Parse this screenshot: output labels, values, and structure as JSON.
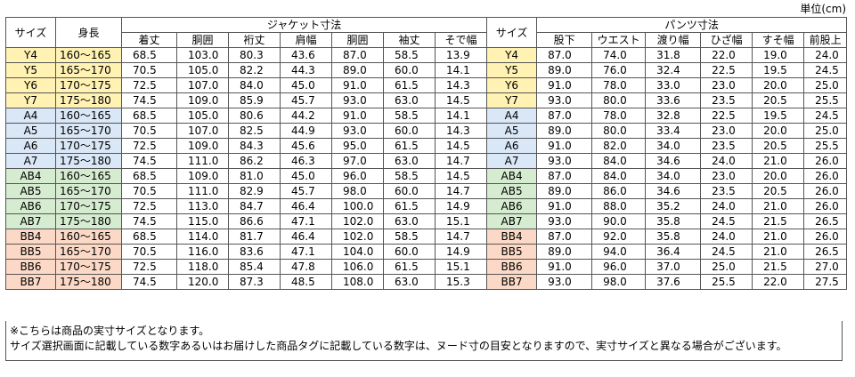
{
  "unit_label": "単位(cm)",
  "headers": {
    "size": "サイズ",
    "height": "身長",
    "jacket_group": "ジャケット寸法",
    "pants_group": "パンツ寸法",
    "jacket_cols": [
      "着丈",
      "胴囲",
      "裄丈",
      "肩幅",
      "胴囲",
      "袖丈",
      "そで幅"
    ],
    "pants_cols": [
      "股下",
      "ウエスト",
      "渡り幅",
      "ひざ幅",
      "すそ幅",
      "前股上"
    ]
  },
  "row_colors": {
    "Y": "#fff2b3",
    "A": "#d9e7f7",
    "AB": "#d6ecd0",
    "BB": "#fbd9c6"
  },
  "rows": [
    {
      "group": "Y",
      "size": "Y4",
      "height": "160～165",
      "jacket": [
        "68.5",
        "103.0",
        "80.3",
        "43.6",
        "87.0",
        "58.5",
        "13.9"
      ],
      "psize": "Y4",
      "pants": [
        "87.0",
        "74.0",
        "31.8",
        "22.0",
        "19.0",
        "24.0"
      ]
    },
    {
      "group": "Y",
      "size": "Y5",
      "height": "165～170",
      "jacket": [
        "70.5",
        "105.0",
        "82.2",
        "44.3",
        "89.0",
        "60.0",
        "14.1"
      ],
      "psize": "Y5",
      "pants": [
        "89.0",
        "76.0",
        "32.4",
        "22.5",
        "19.5",
        "24.5"
      ]
    },
    {
      "group": "Y",
      "size": "Y6",
      "height": "170～175",
      "jacket": [
        "72.5",
        "107.0",
        "84.0",
        "45.0",
        "91.0",
        "61.5",
        "14.3"
      ],
      "psize": "Y6",
      "pants": [
        "91.0",
        "78.0",
        "33.0",
        "23.0",
        "20.0",
        "25.0"
      ]
    },
    {
      "group": "Y",
      "size": "Y7",
      "height": "175～180",
      "jacket": [
        "74.5",
        "109.0",
        "85.9",
        "45.7",
        "93.0",
        "63.0",
        "14.5"
      ],
      "psize": "Y7",
      "pants": [
        "93.0",
        "80.0",
        "33.6",
        "23.5",
        "20.5",
        "25.5"
      ]
    },
    {
      "group": "A",
      "size": "A4",
      "height": "160～165",
      "jacket": [
        "68.5",
        "105.0",
        "80.6",
        "44.2",
        "91.0",
        "58.5",
        "14.1"
      ],
      "psize": "A4",
      "pants": [
        "87.0",
        "78.0",
        "32.8",
        "22.5",
        "19.5",
        "24.5"
      ]
    },
    {
      "group": "A",
      "size": "A5",
      "height": "165～170",
      "jacket": [
        "70.5",
        "107.0",
        "82.5",
        "44.9",
        "93.0",
        "60.0",
        "14.3"
      ],
      "psize": "A5",
      "pants": [
        "89.0",
        "80.0",
        "33.4",
        "23.0",
        "20.0",
        "25.0"
      ]
    },
    {
      "group": "A",
      "size": "A6",
      "height": "170～175",
      "jacket": [
        "72.5",
        "109.0",
        "84.3",
        "45.6",
        "95.0",
        "61.5",
        "14.5"
      ],
      "psize": "A6",
      "pants": [
        "91.0",
        "82.0",
        "34.0",
        "23.5",
        "20.5",
        "25.5"
      ]
    },
    {
      "group": "A",
      "size": "A7",
      "height": "175～180",
      "jacket": [
        "74.5",
        "111.0",
        "86.2",
        "46.3",
        "97.0",
        "63.0",
        "14.7"
      ],
      "psize": "A7",
      "pants": [
        "93.0",
        "84.0",
        "34.6",
        "24.0",
        "21.0",
        "26.0"
      ]
    },
    {
      "group": "AB",
      "size": "AB4",
      "height": "160～165",
      "jacket": [
        "68.5",
        "109.0",
        "81.0",
        "45.0",
        "96.0",
        "58.5",
        "14.5"
      ],
      "psize": "AB4",
      "pants": [
        "87.0",
        "84.0",
        "34.0",
        "23.0",
        "20.0",
        "26.0"
      ]
    },
    {
      "group": "AB",
      "size": "AB5",
      "height": "165～170",
      "jacket": [
        "70.5",
        "111.0",
        "82.9",
        "45.7",
        "98.0",
        "60.0",
        "14.7"
      ],
      "psize": "AB5",
      "pants": [
        "89.0",
        "86.0",
        "34.6",
        "23.5",
        "20.5",
        "26.0"
      ]
    },
    {
      "group": "AB",
      "size": "AB6",
      "height": "170～175",
      "jacket": [
        "72.5",
        "113.0",
        "84.7",
        "46.4",
        "100.0",
        "61.5",
        "14.9"
      ],
      "psize": "AB6",
      "pants": [
        "91.0",
        "88.0",
        "35.2",
        "24.0",
        "21.0",
        "26.0"
      ]
    },
    {
      "group": "AB",
      "size": "AB7",
      "height": "175～180",
      "jacket": [
        "74.5",
        "115.0",
        "86.6",
        "47.1",
        "102.0",
        "63.0",
        "15.1"
      ],
      "psize": "AB7",
      "pants": [
        "93.0",
        "90.0",
        "35.8",
        "24.5",
        "21.5",
        "26.5"
      ]
    },
    {
      "group": "BB",
      "size": "BB4",
      "height": "160～165",
      "jacket": [
        "68.5",
        "114.0",
        "81.7",
        "46.4",
        "102.0",
        "58.5",
        "14.7"
      ],
      "psize": "BB4",
      "pants": [
        "87.0",
        "92.0",
        "35.8",
        "24.0",
        "21.0",
        "26.0"
      ]
    },
    {
      "group": "BB",
      "size": "BB5",
      "height": "165～170",
      "jacket": [
        "70.5",
        "116.0",
        "83.6",
        "47.1",
        "104.0",
        "60.0",
        "14.9"
      ],
      "psize": "BB5",
      "pants": [
        "89.0",
        "94.0",
        "36.4",
        "24.5",
        "21.0",
        "26.5"
      ]
    },
    {
      "group": "BB",
      "size": "BB6",
      "height": "170～175",
      "jacket": [
        "72.5",
        "118.0",
        "85.4",
        "47.8",
        "106.0",
        "61.5",
        "15.1"
      ],
      "psize": "BB6",
      "pants": [
        "91.0",
        "96.0",
        "37.0",
        "25.0",
        "21.5",
        "27.0"
      ]
    },
    {
      "group": "BB",
      "size": "BB7",
      "height": "175～180",
      "jacket": [
        "74.5",
        "120.0",
        "87.3",
        "48.5",
        "108.0",
        "63.0",
        "15.3"
      ],
      "psize": "BB7",
      "pants": [
        "93.0",
        "98.0",
        "37.6",
        "25.5",
        "22.0",
        "27.5"
      ]
    }
  ],
  "notes": [
    "※こちらは商品の実寸サイズとなります。",
    "サイズ選択画面に記載している数字あるいはお届けした商品タグに記載している数字は、ヌード寸の目安となりますので、実寸サイズと異なる場合がございます。"
  ]
}
